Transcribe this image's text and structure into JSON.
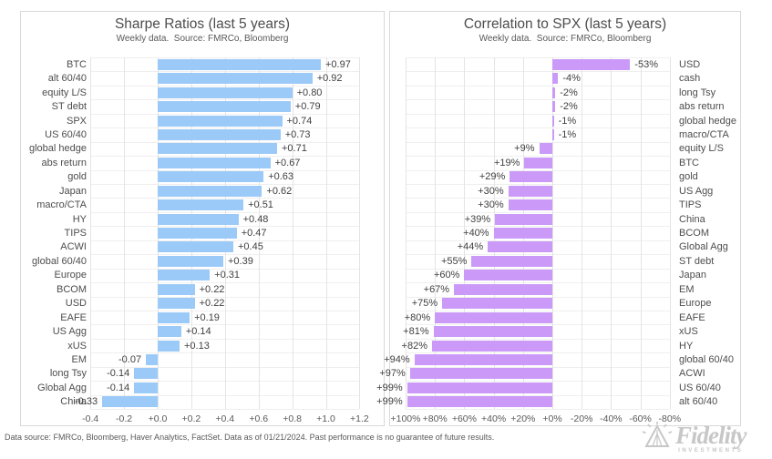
{
  "footer": {
    "text": "Data source: FMRCo, Bloomberg, Haver Analytics, FactSet. Data as of 01/21/2024. Past performance is no guarantee of future results."
  },
  "logo": {
    "brand": "Fidelity",
    "sub": "INVESTMENTS"
  },
  "colors": {
    "sharpe_bar": "#9CCAF8",
    "correlation_bar": "#CB9AF8",
    "grid": "#e4e4e4",
    "panel_border": "#d9d9d9",
    "text": "#4d4d4d"
  },
  "chart_data": [
    {
      "type": "bar",
      "orientation": "horizontal",
      "title": "Sharpe Ratios (last 5 years)",
      "subtitle": "Weekly data.  Source: FMRCo, Bloomberg",
      "bar_color": "#9CCAF8",
      "labels_side": "left",
      "axis_reversed": false,
      "xlim": [
        -0.5,
        1.3
      ],
      "grid": true,
      "categories": [
        "BTC",
        "alt 60/40",
        "equity L/S",
        "ST debt",
        "SPX",
        "US 60/40",
        "global hedge",
        "abs return",
        "gold",
        "Japan",
        "macro/CTA",
        "HY",
        "TIPS",
        "ACWI",
        "global 60/40",
        "Europe",
        "BCOM",
        "USD",
        "EAFE",
        "US Agg",
        "xUS",
        "EM",
        "long Tsy",
        "Global Agg",
        "China"
      ],
      "values": [
        0.97,
        0.92,
        0.8,
        0.79,
        0.74,
        0.73,
        0.71,
        0.67,
        0.63,
        0.62,
        0.51,
        0.48,
        0.47,
        0.45,
        0.39,
        0.31,
        0.22,
        0.22,
        0.19,
        0.14,
        0.13,
        -0.07,
        -0.14,
        -0.14,
        -0.33
      ],
      "value_labels": [
        "+0.97",
        "+0.92",
        "+0.80",
        "+0.79",
        "+0.74",
        "+0.73",
        "+0.71",
        "+0.67",
        "+0.63",
        "+0.62",
        "+0.51",
        "+0.48",
        "+0.47",
        "+0.45",
        "+0.39",
        "+0.31",
        "+0.22",
        "+0.22",
        "+0.19",
        "+0.14",
        "+0.13",
        "-0.07",
        "-0.14",
        "-0.14",
        "-0.33"
      ],
      "tick_values": [
        -0.4,
        -0.2,
        0.0,
        0.2,
        0.4,
        0.6,
        0.8,
        1.0,
        1.2
      ],
      "tick_labels": [
        "-0.4",
        "-0.2",
        "+0.0",
        "+0.2",
        "+0.4",
        "+0.6",
        "+0.8",
        "+1.0",
        "+1.2"
      ]
    },
    {
      "type": "bar",
      "orientation": "horizontal",
      "title": "Correlation to SPX (last 5 years)",
      "subtitle": "Weekly data.  Source: FMRCo, Bloomberg",
      "bar_color": "#CB9AF8",
      "labels_side": "right",
      "axis_reversed": true,
      "xlim": [
        107,
        -86
      ],
      "grid": true,
      "categories": [
        "USD",
        "cash",
        "long Tsy",
        "abs return",
        "global hedge",
        "macro/CTA",
        "equity L/S",
        "BTC",
        "gold",
        "US Agg",
        "TIPS",
        "China",
        "BCOM",
        "Global Agg",
        "ST debt",
        "Japan",
        "EM",
        "Europe",
        "EAFE",
        "xUS",
        "HY",
        "global 60/40",
        "ACWI",
        "US 60/40",
        "alt 60/40"
      ],
      "values": [
        -53,
        -4,
        -2,
        -2,
        -1,
        -1,
        9,
        19,
        29,
        30,
        30,
        39,
        40,
        44,
        55,
        60,
        67,
        75,
        80,
        81,
        82,
        94,
        97,
        99,
        99
      ],
      "value_labels": [
        "-53%",
        "-4%",
        "-2%",
        "-2%",
        "-1%",
        "-1%",
        "+9%",
        "+19%",
        "+29%",
        "+30%",
        "+30%",
        "+39%",
        "+40%",
        "+44%",
        "+55%",
        "+60%",
        "+67%",
        "+75%",
        "+80%",
        "+81%",
        "+82%",
        "+94%",
        "+97%",
        "+99%",
        "+99%"
      ],
      "tick_values": [
        100,
        80,
        60,
        40,
        20,
        0,
        -20,
        -40,
        -60,
        -80
      ],
      "tick_labels": [
        "+100%",
        "+80%",
        "+60%",
        "+40%",
        "+20%",
        "+0%",
        "-20%",
        "-40%",
        "-60%",
        "-80%"
      ]
    }
  ]
}
